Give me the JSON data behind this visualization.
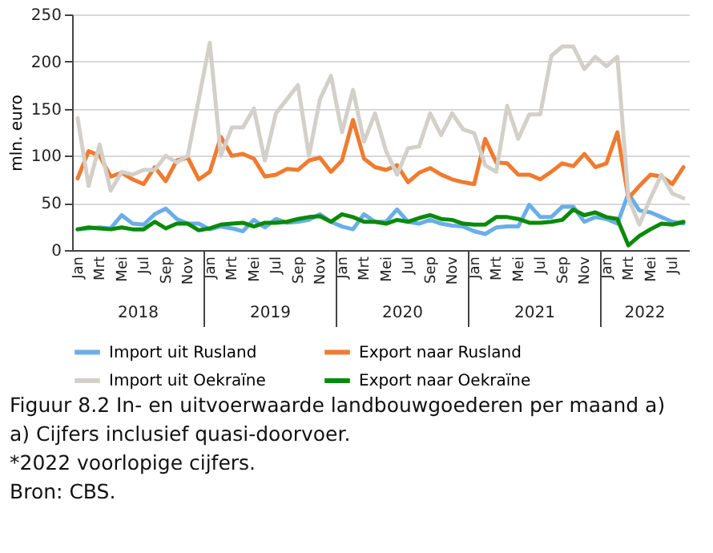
{
  "chart_data": {
    "type": "line",
    "title": "Figuur 8.2   In- en uitvoerwaarde landbouwgoederen per maand a)",
    "ylabel": "mln. euro",
    "categories": [
      "Jan",
      null,
      "Mrt",
      null,
      "Mei",
      null,
      "Jul",
      null,
      "Sep",
      null,
      "Nov",
      null,
      "Jan",
      null,
      "Mrt",
      null,
      "Mei",
      null,
      "Jul",
      null,
      "Sep",
      null,
      "Nov",
      null,
      "Jan",
      null,
      "Mrt",
      null,
      "Mei",
      null,
      "Jul",
      null,
      "Sep",
      null,
      "Nov",
      null,
      "Jan",
      null,
      "Mrt",
      null,
      "Mei",
      null,
      "Jul",
      null,
      "Sep",
      null,
      "Nov",
      null,
      "Jan",
      null,
      "Mrt",
      null,
      "Mei",
      null,
      "Jul",
      null
    ],
    "series": [
      {
        "name": "Import uit Rusland",
        "color": "#6aaee8",
        "values": [
          22,
          23,
          24,
          23,
          37,
          28,
          27,
          38,
          44,
          33,
          28,
          28,
          22,
          25,
          23,
          20,
          32,
          24,
          33,
          29,
          30,
          32,
          38,
          30,
          25,
          22,
          38,
          30,
          30,
          43,
          30,
          28,
          32,
          28,
          26,
          25,
          20,
          17,
          24,
          25,
          25,
          48,
          35,
          35,
          46,
          46,
          30,
          35,
          33,
          28,
          60,
          42,
          40,
          35,
          30,
          28
        ]
      },
      {
        "name": "Export naar Rusland",
        "color": "#f07b30",
        "values": [
          76,
          105,
          100,
          78,
          82,
          75,
          70,
          88,
          73,
          95,
          98,
          75,
          83,
          120,
          100,
          102,
          97,
          78,
          80,
          86,
          85,
          95,
          98,
          83,
          95,
          138,
          97,
          88,
          85,
          90,
          72,
          82,
          87,
          80,
          75,
          72,
          70,
          118,
          93,
          92,
          80,
          80,
          75,
          83,
          92,
          89,
          102,
          88,
          92,
          125,
          55,
          68,
          80,
          78,
          70,
          88
        ]
      },
      {
        "name": "Import uit Oekraïne",
        "color": "#d3d0ca",
        "values": [
          140,
          68,
          112,
          63,
          83,
          80,
          85,
          85,
          100,
          93,
          100,
          160,
          220,
          100,
          130,
          130,
          150,
          95,
          145,
          160,
          175,
          100,
          160,
          185,
          125,
          170,
          115,
          145,
          105,
          80,
          108,
          110,
          145,
          122,
          145,
          128,
          124,
          90,
          83,
          153,
          118,
          144,
          144,
          206,
          216,
          216,
          192,
          205,
          195,
          205,
          55,
          27,
          55,
          80,
          60,
          55
        ]
      },
      {
        "name": "Export naar Oekraïne",
        "color": "#0a8a0a",
        "values": [
          22,
          24,
          23,
          22,
          24,
          22,
          22,
          30,
          23,
          28,
          28,
          21,
          23,
          27,
          28,
          29,
          25,
          29,
          29,
          30,
          33,
          35,
          36,
          30,
          38,
          35,
          30,
          30,
          28,
          32,
          30,
          34,
          37,
          33,
          32,
          28,
          27,
          27,
          35,
          35,
          33,
          29,
          29,
          30,
          32,
          43,
          37,
          40,
          35,
          33,
          5,
          15,
          22,
          28,
          27,
          30
        ]
      }
    ],
    "ylim": [
      0,
      250
    ],
    "yticks": [
      0,
      50,
      100,
      150,
      200,
      250
    ],
    "grid": "y",
    "legend": "bottom",
    "annotations": [
      "2018",
      "2019",
      "2020",
      "2021",
      "2022",
      "a) Cijfers inclusief quasi-doorvoer.",
      "*2022 voorlopige cijfers.",
      "Bron: CBS."
    ]
  }
}
